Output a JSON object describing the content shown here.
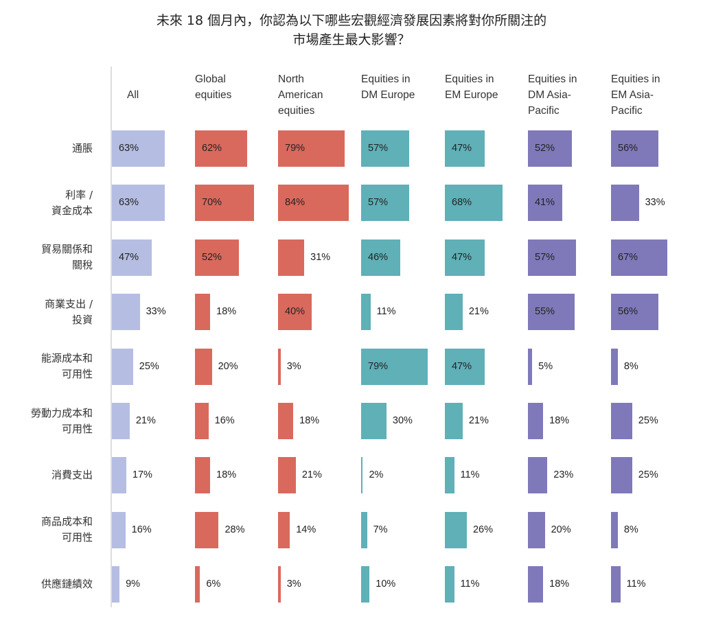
{
  "chart_data": {
    "type": "bar",
    "title": [
      "未來 18 個月內，你認為以下哪些宏觀經濟發展因素將對你所關注的",
      "市場產生最大影響？"
    ],
    "categories": [
      "通脹",
      "利率 /\n資金成本",
      "貿易關係和\n關稅",
      "商業支出 /\n投資",
      "能源成本和\n可用性",
      "勞動力成本和\n可用性",
      "消費支出",
      "商品成本和\n可用性",
      "供應鏈績效"
    ],
    "series": [
      {
        "name": "All",
        "color": "#b5bde2",
        "values": [
          63,
          63,
          47,
          33,
          25,
          21,
          17,
          16,
          9
        ]
      },
      {
        "name": "Global\nequities",
        "color": "#d9695d",
        "values": [
          62,
          70,
          52,
          18,
          20,
          16,
          18,
          28,
          6
        ]
      },
      {
        "name": "North\nAmerican\nequities",
        "color": "#d9695d",
        "values": [
          79,
          84,
          31,
          40,
          3,
          18,
          21,
          14,
          3
        ]
      },
      {
        "name": "Equities in\nDM Europe",
        "color": "#5fb0b7",
        "values": [
          57,
          57,
          46,
          11,
          79,
          30,
          2,
          7,
          10
        ]
      },
      {
        "name": "Equities in\nEM Europe",
        "color": "#5fb0b7",
        "values": [
          47,
          68,
          47,
          21,
          47,
          21,
          11,
          26,
          11
        ]
      },
      {
        "name": "Equities in\nDM Asia-\nPacific",
        "color": "#7f79b9",
        "values": [
          52,
          41,
          57,
          55,
          5,
          18,
          23,
          20,
          18
        ]
      },
      {
        "name": "Equities in\nEM Asia-\nPacific",
        "color": "#7f79b9",
        "values": [
          56,
          33,
          67,
          56,
          8,
          25,
          25,
          8,
          11
        ]
      }
    ],
    "value_format": "{v}%",
    "xlabel": "",
    "ylabel": "",
    "xlim": [
      0,
      100
    ],
    "grid": false
  }
}
